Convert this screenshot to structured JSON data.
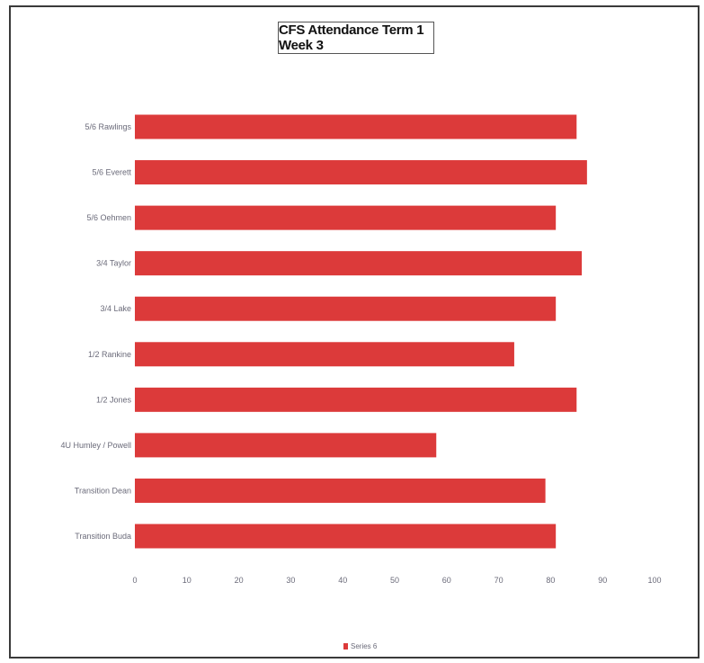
{
  "chart_data": {
    "type": "bar",
    "orientation": "horizontal",
    "title": "CFS Attendance Term 1 Week 3",
    "categories": [
      "5/6 Rawlings",
      "5/6 Everett",
      "5/6 Oehmen",
      "3/4 Taylor",
      "3/4 Lake",
      "1/2 Rankine",
      "1/2 Jones",
      "4U Humley / Powell",
      "Transition Dean",
      "Transition Buda"
    ],
    "series": [
      {
        "name": "Series 6",
        "values": [
          85,
          87,
          81,
          86,
          81,
          73,
          85,
          58,
          79,
          81
        ]
      }
    ],
    "xlim": [
      0,
      100
    ],
    "xticks": [
      "0",
      "10",
      "20",
      "30",
      "40",
      "50",
      "60",
      "70",
      "80",
      "90",
      "100"
    ],
    "grid": false,
    "legend_position": "bottom",
    "bar_color": "#dc3a3a"
  }
}
